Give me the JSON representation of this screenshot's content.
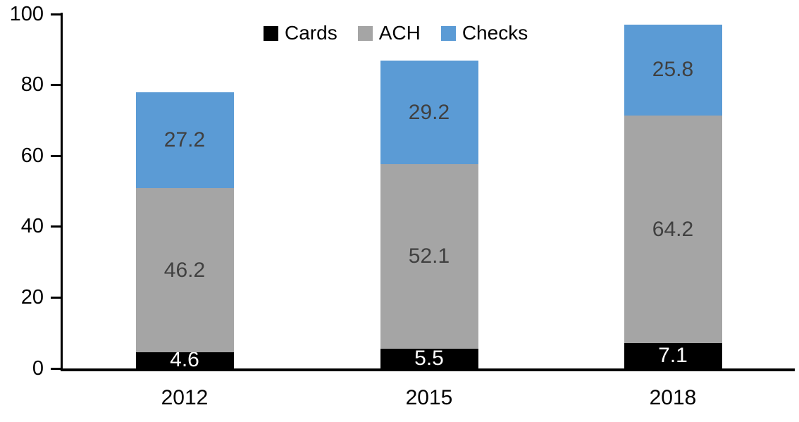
{
  "chart_data": {
    "type": "bar",
    "stacked": true,
    "title": "",
    "xlabel": "",
    "ylabel": "",
    "categories": [
      "2012",
      "2015",
      "2018"
    ],
    "series": [
      {
        "name": "Cards",
        "color": "#000000",
        "label_color": "#ffffff",
        "values": [
          4.6,
          5.5,
          7.1
        ]
      },
      {
        "name": "ACH",
        "color": "#a5a5a5",
        "label_color": "#404040",
        "values": [
          46.2,
          52.1,
          64.2
        ]
      },
      {
        "name": "Checks",
        "color": "#5b9bd5",
        "label_color": "#404040",
        "values": [
          27.2,
          29.2,
          25.8
        ]
      }
    ],
    "totals": [
      78.0,
      86.8,
      97.1
    ],
    "ylim": [
      0,
      100
    ],
    "yticks": [
      0,
      20,
      40,
      60,
      80,
      100
    ],
    "grid": false,
    "legend_position": "top",
    "data_labels": true
  }
}
